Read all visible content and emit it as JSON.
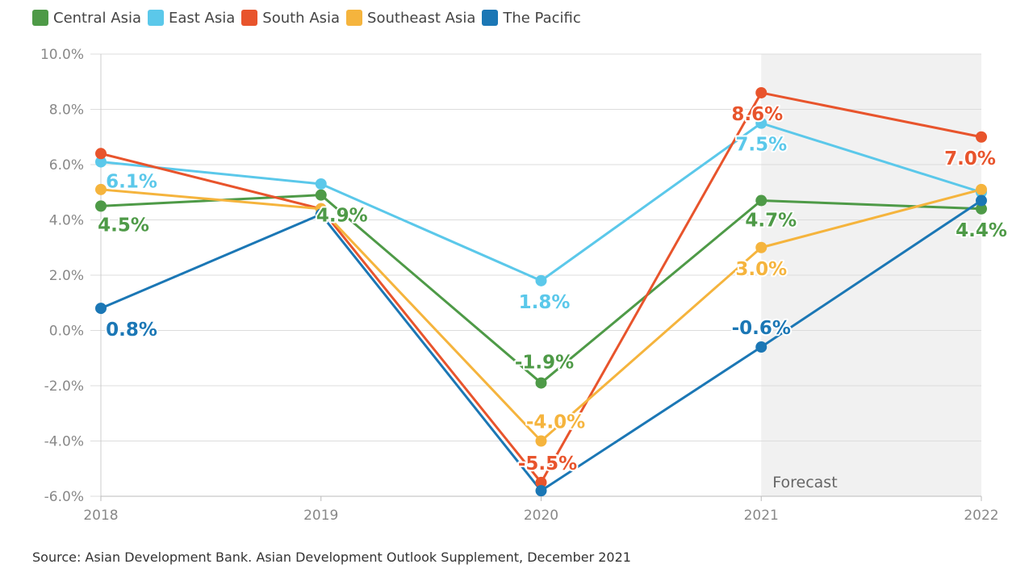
{
  "chart_data": {
    "type": "line",
    "x": [
      "2018",
      "2019",
      "2020",
      "2021",
      "2022"
    ],
    "ylim": [
      -6.0,
      10.0
    ],
    "yticks": [
      "10.0%",
      "8.0%",
      "6.0%",
      "4.0%",
      "2.0%",
      "0.0%",
      "-2.0%",
      "-4.0%",
      "-6.0%"
    ],
    "grid": true,
    "legend_position": "top-left",
    "forecast_label": "Forecast",
    "forecast_start": "2021",
    "series": [
      {
        "name": "Central Asia",
        "color": "#4e9a47",
        "values": [
          4.5,
          4.9,
          -1.9,
          4.7,
          4.4
        ],
        "labels": [
          "4.5%",
          "4.9%",
          "-1.9%",
          "4.7%",
          "4.4%"
        ]
      },
      {
        "name": "East Asia",
        "color": "#5bc8ea",
        "values": [
          6.1,
          5.3,
          1.8,
          7.5,
          5.0
        ],
        "labels": [
          "6.1%",
          "",
          "1.8%",
          "7.5%",
          ""
        ]
      },
      {
        "name": "South Asia",
        "color": "#e8542c",
        "values": [
          6.4,
          4.4,
          -5.5,
          8.6,
          7.0
        ],
        "labels": [
          "",
          "",
          "-5.5%",
          "8.6%",
          "7.0%"
        ]
      },
      {
        "name": "Southeast Asia",
        "color": "#f5b43d",
        "values": [
          5.1,
          4.4,
          -4.0,
          3.0,
          5.1
        ],
        "labels": [
          "",
          "",
          "-4.0%",
          "3.0%",
          ""
        ]
      },
      {
        "name": "The Pacific",
        "color": "#1b77b5",
        "values": [
          0.8,
          4.2,
          -5.8,
          -0.6,
          4.7
        ],
        "labels": [
          "0.8%",
          "",
          "",
          "-0.6%",
          ""
        ]
      }
    ]
  },
  "source_text": "Source: Asian Development Bank. Asian Development Outlook Supplement, December 2021"
}
